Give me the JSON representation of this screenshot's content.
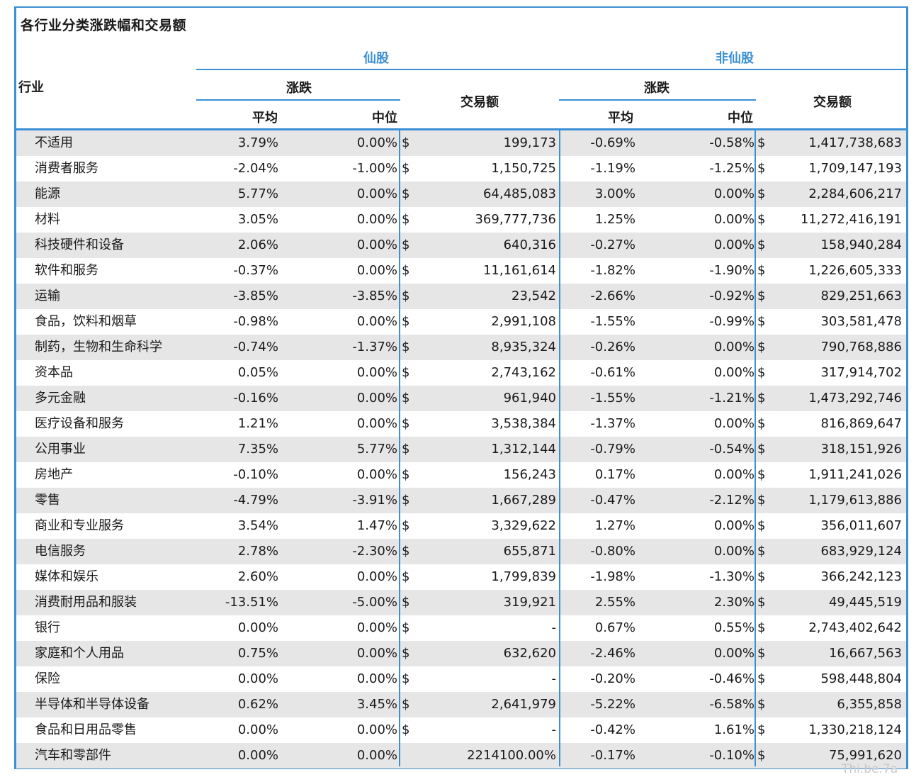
{
  "title": "各行业分类涨跌幅和交易额",
  "header": {
    "industry": "行业",
    "xian_group": "仙股",
    "fei_group": "非仙股",
    "change": "涨跌",
    "avg": "平均",
    "median": "中位",
    "volume": "交易额"
  },
  "rows": [
    {
      "industry": "不适用",
      "xian_avg": "3.79%",
      "xian_med": "0.00%",
      "xian_dollar": "$",
      "xian_amt": "199,173",
      "fei_avg": "-0.69%",
      "fei_med": "-0.58%",
      "fei_dollar": "$",
      "fei_amt": "1,417,738,683"
    },
    {
      "industry": "消费者服务",
      "xian_avg": "-2.04%",
      "xian_med": "-1.00%",
      "xian_dollar": "$",
      "xian_amt": "1,150,725",
      "fei_avg": "-1.19%",
      "fei_med": "-1.25%",
      "fei_dollar": "$",
      "fei_amt": "1,709,147,193"
    },
    {
      "industry": "能源",
      "xian_avg": "5.77%",
      "xian_med": "0.00%",
      "xian_dollar": "$",
      "xian_amt": "64,485,083",
      "fei_avg": "3.00%",
      "fei_med": "0.00%",
      "fei_dollar": "$",
      "fei_amt": "2,284,606,217"
    },
    {
      "industry": "材料",
      "xian_avg": "3.05%",
      "xian_med": "0.00%",
      "xian_dollar": "$",
      "xian_amt": "369,777,736",
      "fei_avg": "1.25%",
      "fei_med": "0.00%",
      "fei_dollar": "$",
      "fei_amt": "11,272,416,191"
    },
    {
      "industry": "科技硬件和设备",
      "xian_avg": "2.06%",
      "xian_med": "0.00%",
      "xian_dollar": "$",
      "xian_amt": "640,316",
      "fei_avg": "-0.27%",
      "fei_med": "0.00%",
      "fei_dollar": "$",
      "fei_amt": "158,940,284"
    },
    {
      "industry": "软件和服务",
      "xian_avg": "-0.37%",
      "xian_med": "0.00%",
      "xian_dollar": "$",
      "xian_amt": "11,161,614",
      "fei_avg": "-1.82%",
      "fei_med": "-1.90%",
      "fei_dollar": "$",
      "fei_amt": "1,226,605,333"
    },
    {
      "industry": "运输",
      "xian_avg": "-3.85%",
      "xian_med": "-3.85%",
      "xian_dollar": "$",
      "xian_amt": "23,542",
      "fei_avg": "-2.66%",
      "fei_med": "-0.92%",
      "fei_dollar": "$",
      "fei_amt": "829,251,663"
    },
    {
      "industry": "食品，饮料和烟草",
      "xian_avg": "-0.98%",
      "xian_med": "0.00%",
      "xian_dollar": "$",
      "xian_amt": "2,991,108",
      "fei_avg": "-1.55%",
      "fei_med": "-0.99%",
      "fei_dollar": "$",
      "fei_amt": "303,581,478"
    },
    {
      "industry": "制药，生物和生命科学",
      "xian_avg": "-0.74%",
      "xian_med": "-1.37%",
      "xian_dollar": "$",
      "xian_amt": "8,935,324",
      "fei_avg": "-0.26%",
      "fei_med": "0.00%",
      "fei_dollar": "$",
      "fei_amt": "790,768,886"
    },
    {
      "industry": "资本品",
      "xian_avg": "0.05%",
      "xian_med": "0.00%",
      "xian_dollar": "$",
      "xian_amt": "2,743,162",
      "fei_avg": "-0.61%",
      "fei_med": "0.00%",
      "fei_dollar": "$",
      "fei_amt": "317,914,702"
    },
    {
      "industry": "多元金融",
      "xian_avg": "-0.16%",
      "xian_med": "0.00%",
      "xian_dollar": "$",
      "xian_amt": "961,940",
      "fei_avg": "-1.55%",
      "fei_med": "-1.21%",
      "fei_dollar": "$",
      "fei_amt": "1,473,292,746"
    },
    {
      "industry": "医疗设备和服务",
      "xian_avg": "1.21%",
      "xian_med": "0.00%",
      "xian_dollar": "$",
      "xian_amt": "3,538,384",
      "fei_avg": "-1.37%",
      "fei_med": "0.00%",
      "fei_dollar": "$",
      "fei_amt": "816,869,647"
    },
    {
      "industry": "公用事业",
      "xian_avg": "7.35%",
      "xian_med": "5.77%",
      "xian_dollar": "$",
      "xian_amt": "1,312,144",
      "fei_avg": "-0.79%",
      "fei_med": "-0.54%",
      "fei_dollar": "$",
      "fei_amt": "318,151,926"
    },
    {
      "industry": "房地产",
      "xian_avg": "-0.10%",
      "xian_med": "0.00%",
      "xian_dollar": "$",
      "xian_amt": "156,243",
      "fei_avg": "0.17%",
      "fei_med": "0.00%",
      "fei_dollar": "$",
      "fei_amt": "1,911,241,026"
    },
    {
      "industry": "零售",
      "xian_avg": "-4.79%",
      "xian_med": "-3.91%",
      "xian_dollar": "$",
      "xian_amt": "1,667,289",
      "fei_avg": "-0.47%",
      "fei_med": "-2.12%",
      "fei_dollar": "$",
      "fei_amt": "1,179,613,886"
    },
    {
      "industry": "商业和专业服务",
      "xian_avg": "3.54%",
      "xian_med": "1.47%",
      "xian_dollar": "$",
      "xian_amt": "3,329,622",
      "fei_avg": "1.27%",
      "fei_med": "0.00%",
      "fei_dollar": "$",
      "fei_amt": "356,011,607"
    },
    {
      "industry": "电信服务",
      "xian_avg": "2.78%",
      "xian_med": "-2.30%",
      "xian_dollar": "$",
      "xian_amt": "655,871",
      "fei_avg": "-0.80%",
      "fei_med": "0.00%",
      "fei_dollar": "$",
      "fei_amt": "683,929,124"
    },
    {
      "industry": "媒体和娱乐",
      "xian_avg": "2.60%",
      "xian_med": "0.00%",
      "xian_dollar": "$",
      "xian_amt": "1,799,839",
      "fei_avg": "-1.98%",
      "fei_med": "-1.30%",
      "fei_dollar": "$",
      "fei_amt": "366,242,123"
    },
    {
      "industry": "消费耐用品和服装",
      "xian_avg": "-13.51%",
      "xian_med": "-5.00%",
      "xian_dollar": "$",
      "xian_amt": "319,921",
      "fei_avg": "2.55%",
      "fei_med": "2.30%",
      "fei_dollar": "$",
      "fei_amt": "49,445,519"
    },
    {
      "industry": "银行",
      "xian_avg": "0.00%",
      "xian_med": "0.00%",
      "xian_dollar": "$",
      "xian_amt": "-",
      "fei_avg": "0.67%",
      "fei_med": "0.55%",
      "fei_dollar": "$",
      "fei_amt": "2,743,402,642"
    },
    {
      "industry": "家庭和个人用品",
      "xian_avg": "0.75%",
      "xian_med": "0.00%",
      "xian_dollar": "$",
      "xian_amt": "632,620",
      "fei_avg": "-2.46%",
      "fei_med": "0.00%",
      "fei_dollar": "$",
      "fei_amt": "16,667,563"
    },
    {
      "industry": "保险",
      "xian_avg": "0.00%",
      "xian_med": "0.00%",
      "xian_dollar": "$",
      "xian_amt": "-",
      "fei_avg": "-0.20%",
      "fei_med": "-0.46%",
      "fei_dollar": "$",
      "fei_amt": "598,448,804"
    },
    {
      "industry": "半导体和半导体设备",
      "xian_avg": "0.62%",
      "xian_med": "3.45%",
      "xian_dollar": "$",
      "xian_amt": "2,641,979",
      "fei_avg": "-5.22%",
      "fei_med": "-6.58%",
      "fei_dollar": "$",
      "fei_amt": "6,355,858"
    },
    {
      "industry": "食品和日用品零售",
      "xian_avg": "0.00%",
      "xian_med": "0.00%",
      "xian_dollar": "$",
      "xian_amt": "-",
      "fei_avg": "-0.42%",
      "fei_med": "1.61%",
      "fei_dollar": "$",
      "fei_amt": "1,330,218,124"
    },
    {
      "industry": "汽车和零部件",
      "xian_avg": "0.00%",
      "xian_med": "0.00%",
      "xian_dollar": "",
      "xian_amt": "2214100.00%",
      "fei_avg": "-0.17%",
      "fei_med": "-0.10%",
      "fei_dollar": "$",
      "fei_amt": "75,991,620"
    }
  ],
  "corner_text": "Thi.be.7a",
  "colors": {
    "accent": "#3a8fd6",
    "stripe": "#e6e6e6"
  }
}
